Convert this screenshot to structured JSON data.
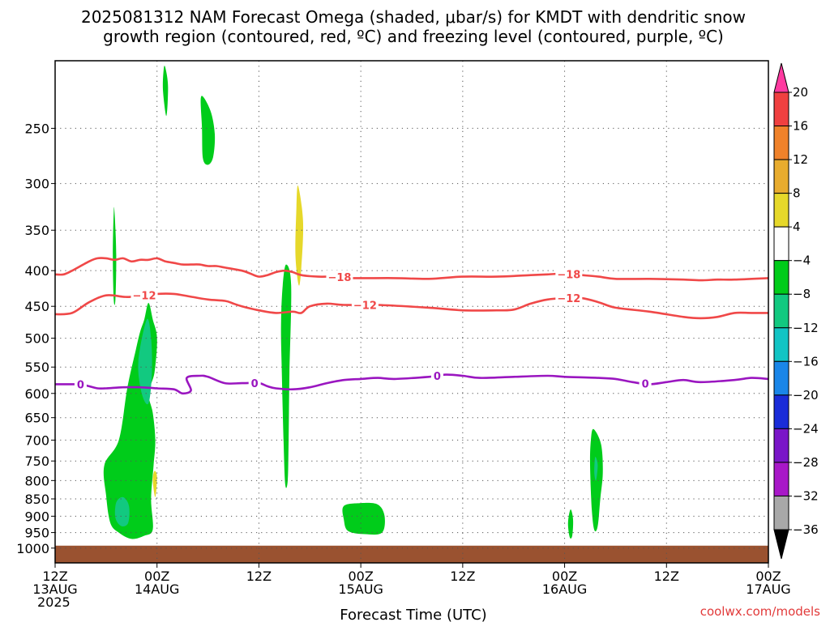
{
  "chart_data": {
    "type": "heatmap",
    "title_line1": "2025081312 NAM Forecast Omega (shaded, μbar/s) for KMDT with dendritic snow",
    "title_line2": "growth region (contoured, red, ºC) and freezing level (contoured, purple, ºC)",
    "xlabel": "Forecast Time (UTC)",
    "credit": "coolwx.com/models",
    "y_axis": {
      "unit": "hPa",
      "log_scale": true,
      "inverted": true,
      "range": [
        200,
        1050
      ],
      "ticks": [
        250,
        300,
        350,
        400,
        450,
        500,
        550,
        600,
        650,
        700,
        750,
        800,
        850,
        900,
        950,
        1000
      ]
    },
    "x_axis": {
      "range_hours": [
        0,
        84
      ],
      "ticks": [
        {
          "h": 0,
          "l1": "12Z",
          "l2": "13AUG",
          "l3": "2025"
        },
        {
          "h": 12,
          "l1": "00Z",
          "l2": "14AUG",
          "l3": ""
        },
        {
          "h": 24,
          "l1": "12Z",
          "l2": "",
          "l3": ""
        },
        {
          "h": 36,
          "l1": "00Z",
          "l2": "15AUG",
          "l3": ""
        },
        {
          "h": 48,
          "l1": "12Z",
          "l2": "",
          "l3": ""
        },
        {
          "h": 60,
          "l1": "00Z",
          "l2": "16AUG",
          "l3": ""
        },
        {
          "h": 72,
          "l1": "12Z",
          "l2": "",
          "l3": ""
        },
        {
          "h": 84,
          "l1": "00Z",
          "l2": "17AUG",
          "l3": ""
        }
      ]
    },
    "colorbar": {
      "labels": [
        "20",
        "16",
        "12",
        "8",
        "4",
        "−4",
        "−8",
        "−12",
        "−16",
        "−20",
        "−24",
        "−28",
        "−32",
        "−36"
      ],
      "bins": [
        {
          "color": "#ff3aa0"
        },
        {
          "color": "#f04040"
        },
        {
          "color": "#f0822a"
        },
        {
          "color": "#e8ac2e"
        },
        {
          "color": "#e6d82a"
        },
        {
          "color": "#ffffff"
        },
        {
          "color": "#00cc1a"
        },
        {
          "color": "#12c980"
        },
        {
          "color": "#12c4c4"
        },
        {
          "color": "#1a86e8"
        },
        {
          "color": "#1a2cd8"
        },
        {
          "color": "#7a16c8"
        },
        {
          "color": "#a818c8"
        },
        {
          "color": "#a8a8a8"
        },
        {
          "color": "#000000"
        }
      ]
    },
    "ground": {
      "color": "#9a5230",
      "top_hPa": 1000
    },
    "contours": [
      {
        "name": "-18",
        "color": "#f04848",
        "label": "−18",
        "label_at_hours": [
          33.5,
          60.5
        ],
        "points": [
          [
            0,
            405
          ],
          [
            1,
            405
          ],
          [
            2,
            400
          ],
          [
            4,
            388
          ],
          [
            5,
            384
          ],
          [
            6,
            384
          ],
          [
            7,
            386
          ],
          [
            8,
            384
          ],
          [
            9,
            388
          ],
          [
            10,
            386
          ],
          [
            11,
            386
          ],
          [
            12,
            384
          ],
          [
            13,
            388
          ],
          [
            14,
            390
          ],
          [
            15,
            392
          ],
          [
            16,
            392
          ],
          [
            17,
            392
          ],
          [
            18,
            394
          ],
          [
            19,
            394
          ],
          [
            20,
            396
          ],
          [
            22,
            400
          ],
          [
            23,
            404
          ],
          [
            24,
            408
          ],
          [
            25,
            406
          ],
          [
            26,
            402
          ],
          [
            27,
            400
          ],
          [
            28,
            402
          ],
          [
            29,
            406
          ],
          [
            31,
            408
          ],
          [
            33,
            408
          ],
          [
            35,
            410
          ],
          [
            40,
            410
          ],
          [
            44,
            411
          ],
          [
            48,
            408
          ],
          [
            52,
            408
          ],
          [
            56,
            406
          ],
          [
            58,
            405
          ],
          [
            60,
            404
          ],
          [
            62,
            406
          ],
          [
            64,
            408
          ],
          [
            66,
            411
          ],
          [
            70,
            411
          ],
          [
            74,
            412
          ],
          [
            76,
            413
          ],
          [
            78,
            412
          ],
          [
            80,
            412
          ],
          [
            84,
            410
          ]
        ]
      },
      {
        "name": "-12",
        "color": "#f04848",
        "label": "−12",
        "label_at_hours": [
          10.5,
          36.5,
          60.5
        ],
        "points": [
          [
            0,
            462
          ],
          [
            2,
            460
          ],
          [
            4,
            444
          ],
          [
            6,
            434
          ],
          [
            8,
            436
          ],
          [
            9,
            436
          ],
          [
            12,
            432
          ],
          [
            14,
            432
          ],
          [
            16,
            436
          ],
          [
            18,
            440
          ],
          [
            20,
            442
          ],
          [
            21,
            446
          ],
          [
            22,
            450
          ],
          [
            24,
            456
          ],
          [
            26,
            460
          ],
          [
            28,
            458
          ],
          [
            29,
            460
          ],
          [
            30,
            450
          ],
          [
            32,
            446
          ],
          [
            34,
            448
          ],
          [
            38,
            448
          ],
          [
            44,
            452
          ],
          [
            48,
            456
          ],
          [
            52,
            456
          ],
          [
            54,
            455
          ],
          [
            56,
            446
          ],
          [
            58,
            440
          ],
          [
            60,
            438
          ],
          [
            62,
            438
          ],
          [
            64,
            444
          ],
          [
            66,
            452
          ],
          [
            70,
            458
          ],
          [
            74,
            466
          ],
          [
            76,
            468
          ],
          [
            78,
            466
          ],
          [
            80,
            460
          ],
          [
            82,
            460
          ],
          [
            84,
            460
          ]
        ]
      },
      {
        "name": "0",
        "color": "#9a16c0",
        "label": "0",
        "label_at_hours": [
          3,
          23.5,
          45,
          69.5
        ],
        "points": [
          [
            0,
            582
          ],
          [
            2,
            582
          ],
          [
            3,
            582
          ],
          [
            4,
            586
          ],
          [
            5,
            590
          ],
          [
            6,
            590
          ],
          [
            8,
            588
          ],
          [
            10,
            588
          ],
          [
            12,
            590
          ],
          [
            14,
            592
          ],
          [
            15,
            600
          ],
          [
            16,
            594
          ],
          [
            15.5,
            570
          ],
          [
            17,
            566
          ],
          [
            18,
            568
          ],
          [
            20,
            580
          ],
          [
            22,
            580
          ],
          [
            24,
            580
          ],
          [
            25,
            586
          ],
          [
            26,
            590
          ],
          [
            28,
            592
          ],
          [
            30,
            588
          ],
          [
            32,
            580
          ],
          [
            34,
            574
          ],
          [
            36,
            572
          ],
          [
            38,
            570
          ],
          [
            40,
            572
          ],
          [
            44,
            568
          ],
          [
            46,
            564
          ],
          [
            48,
            566
          ],
          [
            50,
            570
          ],
          [
            54,
            568
          ],
          [
            58,
            566
          ],
          [
            60,
            568
          ],
          [
            64,
            570
          ],
          [
            66,
            572
          ],
          [
            68,
            578
          ],
          [
            70,
            582
          ],
          [
            72,
            578
          ],
          [
            74,
            574
          ],
          [
            76,
            578
          ],
          [
            80,
            574
          ],
          [
            82,
            570
          ],
          [
            84,
            572
          ]
        ]
      }
    ],
    "shaded_regions": [
      {
        "name": "green-left-column",
        "color": "#00cc1a",
        "value_range": [
          -8,
          -4
        ],
        "points": [
          [
            7.5,
            700
          ],
          [
            8.5,
            590
          ],
          [
            9.5,
            520
          ],
          [
            10,
            490
          ],
          [
            10.5,
            470
          ],
          [
            11,
            445
          ],
          [
            11.5,
            470
          ],
          [
            12,
            500
          ],
          [
            11.7,
            560
          ],
          [
            11,
            600
          ],
          [
            11.5,
            640
          ],
          [
            11.8,
            700
          ],
          [
            11.6,
            760
          ],
          [
            11.3,
            850
          ],
          [
            11.5,
            940
          ],
          [
            10.5,
            960
          ],
          [
            9,
            970
          ],
          [
            7.5,
            950
          ],
          [
            6.5,
            920
          ],
          [
            6.0,
            840
          ],
          [
            5.8,
            760
          ]
        ]
      },
      {
        "name": "teal-left-core",
        "color": "#12c980",
        "value_range": [
          -12,
          -8
        ],
        "points": [
          [
            10.8,
            470
          ],
          [
            11.3,
            500
          ],
          [
            11.4,
            560
          ],
          [
            11,
            620
          ],
          [
            10.2,
            600
          ],
          [
            9.8,
            540
          ]
        ]
      },
      {
        "name": "teal-low-core",
        "color": "#12c980",
        "value_range": [
          -12,
          -8
        ],
        "points": [
          [
            7.2,
            860
          ],
          [
            8,
            845
          ],
          [
            8.7,
            870
          ],
          [
            8.6,
            920
          ],
          [
            7.8,
            930
          ],
          [
            7.1,
            905
          ]
        ]
      },
      {
        "name": "yellow-left-small",
        "color": "#e6d82a",
        "value_range": [
          4,
          8
        ],
        "points": [
          [
            11.7,
            775
          ],
          [
            12,
            790
          ],
          [
            11.8,
            845
          ],
          [
            11.5,
            800
          ]
        ]
      },
      {
        "name": "green-thin-14z",
        "color": "#00cc1a",
        "value_range": [
          -8,
          -4
        ],
        "points": [
          [
            7,
            330
          ],
          [
            7.2,
            380
          ],
          [
            7.1,
            440
          ],
          [
            6.9,
            440
          ],
          [
            6.8,
            380
          ],
          [
            6.9,
            330
          ]
        ]
      },
      {
        "name": "green-top-sliver",
        "color": "#00cc1a",
        "value_range": [
          -8,
          -4
        ],
        "points": [
          [
            13,
            205
          ],
          [
            13.3,
            218
          ],
          [
            13.1,
            240
          ],
          [
            12.7,
            220
          ],
          [
            12.8,
            205
          ]
        ]
      },
      {
        "name": "green-upper-blob",
        "color": "#00cc1a",
        "value_range": [
          -8,
          -4
        ],
        "points": [
          [
            17.2,
            225
          ],
          [
            18.3,
            236
          ],
          [
            18.8,
            255
          ],
          [
            18.6,
            275
          ],
          [
            18,
            282
          ],
          [
            17.4,
            276
          ],
          [
            17.3,
            250
          ]
        ]
      },
      {
        "name": "green-mid-column",
        "color": "#00cc1a",
        "value_range": [
          -8,
          -4
        ],
        "points": [
          [
            27.2,
            392
          ],
          [
            27.8,
            420
          ],
          [
            27.6,
            560
          ],
          [
            27.5,
            700
          ],
          [
            27.4,
            800
          ],
          [
            27.1,
            810
          ],
          [
            26.9,
            700
          ],
          [
            26.7,
            560
          ],
          [
            26.6,
            480
          ],
          [
            26.8,
            420
          ]
        ]
      },
      {
        "name": "yellow-mid-column",
        "color": "#e6d82a",
        "value_range": [
          4,
          8
        ],
        "points": [
          [
            28.6,
            302
          ],
          [
            29.2,
            340
          ],
          [
            29,
            395
          ],
          [
            28.7,
            420
          ],
          [
            28.3,
            380
          ],
          [
            28.4,
            330
          ]
        ]
      },
      {
        "name": "green-low-blob-15aug",
        "color": "#00cc1a",
        "value_range": [
          -8,
          -4
        ],
        "points": [
          [
            34,
            870
          ],
          [
            36,
            862
          ],
          [
            38,
            866
          ],
          [
            38.8,
            900
          ],
          [
            38.5,
            950
          ],
          [
            36.5,
            955
          ],
          [
            34.5,
            945
          ],
          [
            34,
            910
          ]
        ]
      },
      {
        "name": "green-small-16aug",
        "color": "#00cc1a",
        "value_range": [
          -8,
          -4
        ],
        "points": [
          [
            60.7,
            880
          ],
          [
            61,
            910
          ],
          [
            60.9,
            960
          ],
          [
            60.6,
            965
          ],
          [
            60.4,
            920
          ]
        ]
      },
      {
        "name": "green-column-16aug",
        "color": "#00cc1a",
        "value_range": [
          -8,
          -4
        ],
        "points": [
          [
            63.4,
            675
          ],
          [
            64.3,
            710
          ],
          [
            64.5,
            780
          ],
          [
            64.2,
            850
          ],
          [
            63.9,
            930
          ],
          [
            63.5,
            942
          ],
          [
            63.2,
            880
          ],
          [
            63.0,
            760
          ],
          [
            63.1,
            700
          ]
        ]
      },
      {
        "name": "teal-core-16aug",
        "color": "#12c980",
        "value_range": [
          -12,
          -8
        ],
        "points": [
          [
            63.6,
            740
          ],
          [
            63.9,
            760
          ],
          [
            63.7,
            800
          ],
          [
            63.5,
            780
          ]
        ]
      }
    ]
  }
}
